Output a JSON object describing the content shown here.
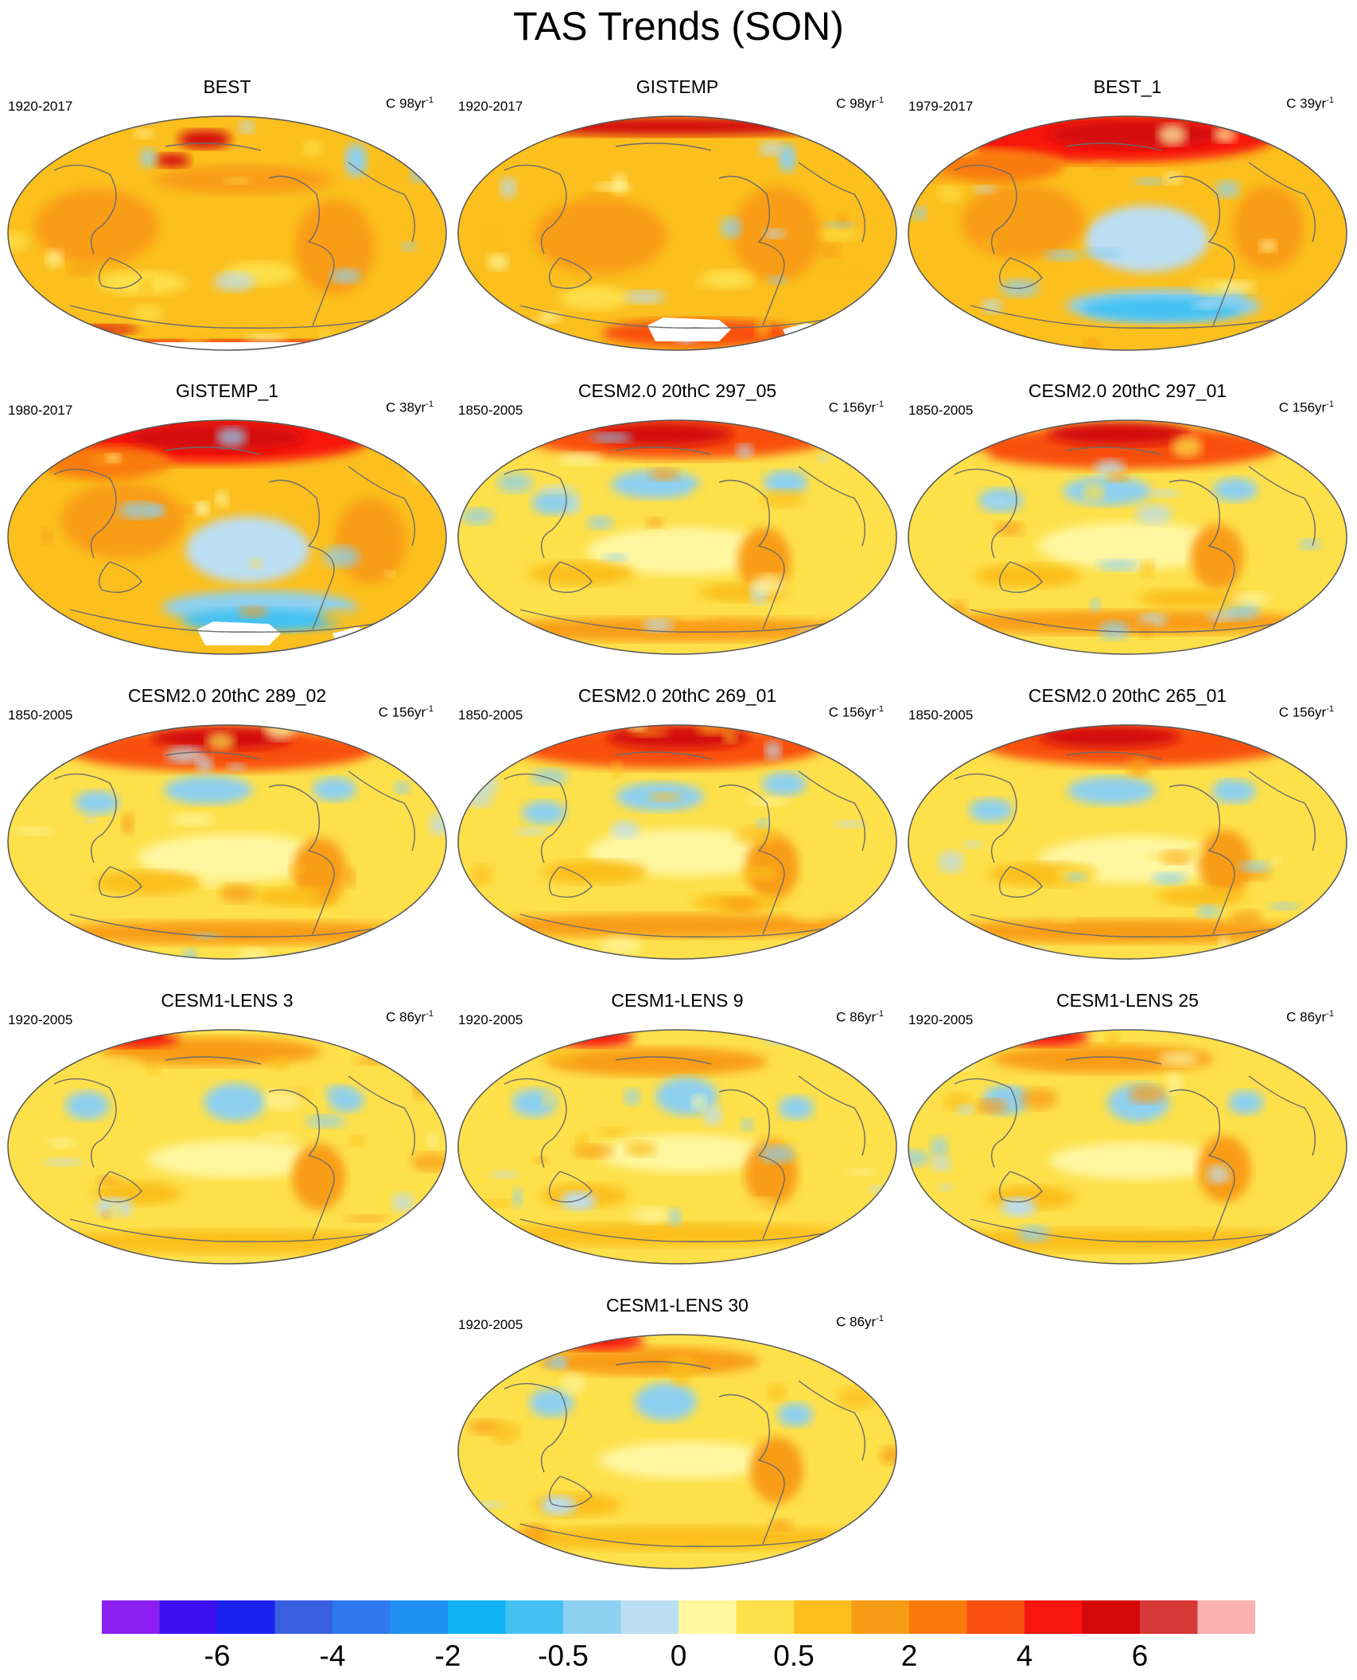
{
  "title": "TAS Trends (SON)",
  "panels": [
    {
      "title": "BEST",
      "period": "1920-2017",
      "units_prefix": "C 98yr",
      "units_exp": "-1",
      "pattern": "obs_century_mild",
      "missing": "antarctic_band"
    },
    {
      "title": "GISTEMP",
      "period": "1920-2017",
      "units_prefix": "C 98yr",
      "units_exp": "-1",
      "pattern": "obs_century_warm",
      "missing": "antarctic_patch"
    },
    {
      "title": "BEST_1",
      "period": "1979-2017",
      "units_prefix": "C 39yr",
      "units_exp": "-1",
      "pattern": "obs_recent",
      "missing": "none"
    },
    {
      "title": "GISTEMP_1",
      "period": "1980-2017",
      "units_prefix": "C 38yr",
      "units_exp": "-1",
      "pattern": "obs_recent",
      "missing": "antarctic_patch"
    },
    {
      "title": "CESM2.0 20thC 297_05",
      "period": "1850-2005",
      "units_prefix": "C 156yr",
      "units_exp": "-1",
      "pattern": "model_cesm2",
      "missing": "none"
    },
    {
      "title": "CESM2.0 20thC 297_01",
      "period": "1850-2005",
      "units_prefix": "C 156yr",
      "units_exp": "-1",
      "pattern": "model_cesm2",
      "missing": "none"
    },
    {
      "title": "CESM2.0 20thC 289_02",
      "period": "1850-2005",
      "units_prefix": "C 156yr",
      "units_exp": "-1",
      "pattern": "model_cesm2",
      "missing": "none"
    },
    {
      "title": "CESM2.0 20thC 269_01",
      "period": "1850-2005",
      "units_prefix": "C 156yr",
      "units_exp": "-1",
      "pattern": "model_cesm2",
      "missing": "none"
    },
    {
      "title": "CESM2.0 20thC 265_01",
      "period": "1850-2005",
      "units_prefix": "C 156yr",
      "units_exp": "-1",
      "pattern": "model_cesm2",
      "missing": "none"
    },
    {
      "title": "CESM1-LENS 3",
      "period": "1920-2005",
      "units_prefix": "C 86yr",
      "units_exp": "-1",
      "pattern": "model_lens",
      "missing": "none"
    },
    {
      "title": "CESM1-LENS 9",
      "period": "1920-2005",
      "units_prefix": "C 86yr",
      "units_exp": "-1",
      "pattern": "model_lens",
      "missing": "none"
    },
    {
      "title": "CESM1-LENS 25",
      "period": "1920-2005",
      "units_prefix": "C 86yr",
      "units_exp": "-1",
      "pattern": "model_lens",
      "missing": "none"
    },
    {
      "title": "CESM1-LENS 30",
      "period": "1920-2005",
      "units_prefix": "C 86yr",
      "units_exp": "-1",
      "pattern": "model_lens",
      "missing": "none"
    }
  ],
  "colorbar": {
    "colors": [
      "#8a1ff0",
      "#3d10f2",
      "#1a22f0",
      "#3a5ee0",
      "#2f78f0",
      "#2090f5",
      "#12b2f8",
      "#45c2f2",
      "#8ed0f0",
      "#bcdef2",
      "#fff6a0",
      "#fde04a",
      "#fbbf1e",
      "#f99c16",
      "#f97a0a",
      "#f95010",
      "#f8160e",
      "#d40808",
      "#d63838",
      "#fbb0b0"
    ],
    "tick_labels": [
      "-6",
      "-4",
      "-2",
      "-0.5",
      "0",
      "0.5",
      "2",
      "4",
      "6"
    ],
    "tick_after_box": [
      2,
      4,
      6,
      8,
      10,
      12,
      14,
      16,
      18
    ]
  },
  "chart_data": {
    "type": "heatmap",
    "title": "TAS Trends (SON)",
    "variable": "surface air temperature trend, Sep-Oct-Nov",
    "projection": "global map (Robinson-like)",
    "panels": [
      "BEST",
      "GISTEMP",
      "BEST_1",
      "GISTEMP_1",
      "CESM2.0 20thC 297_05",
      "CESM2.0 20thC 297_01",
      "CESM2.0 20thC 289_02",
      "CESM2.0 20thC 269_01",
      "CESM2.0 20thC 265_01",
      "CESM1-LENS 3",
      "CESM1-LENS 9",
      "CESM1-LENS 25",
      "CESM1-LENS 30"
    ],
    "color_scale_labels": [
      "-6",
      "-4",
      "-2",
      "-0.5",
      "0",
      "0.5",
      "2",
      "4",
      "6"
    ],
    "color_scale_units": "C per period",
    "grid": false
  }
}
